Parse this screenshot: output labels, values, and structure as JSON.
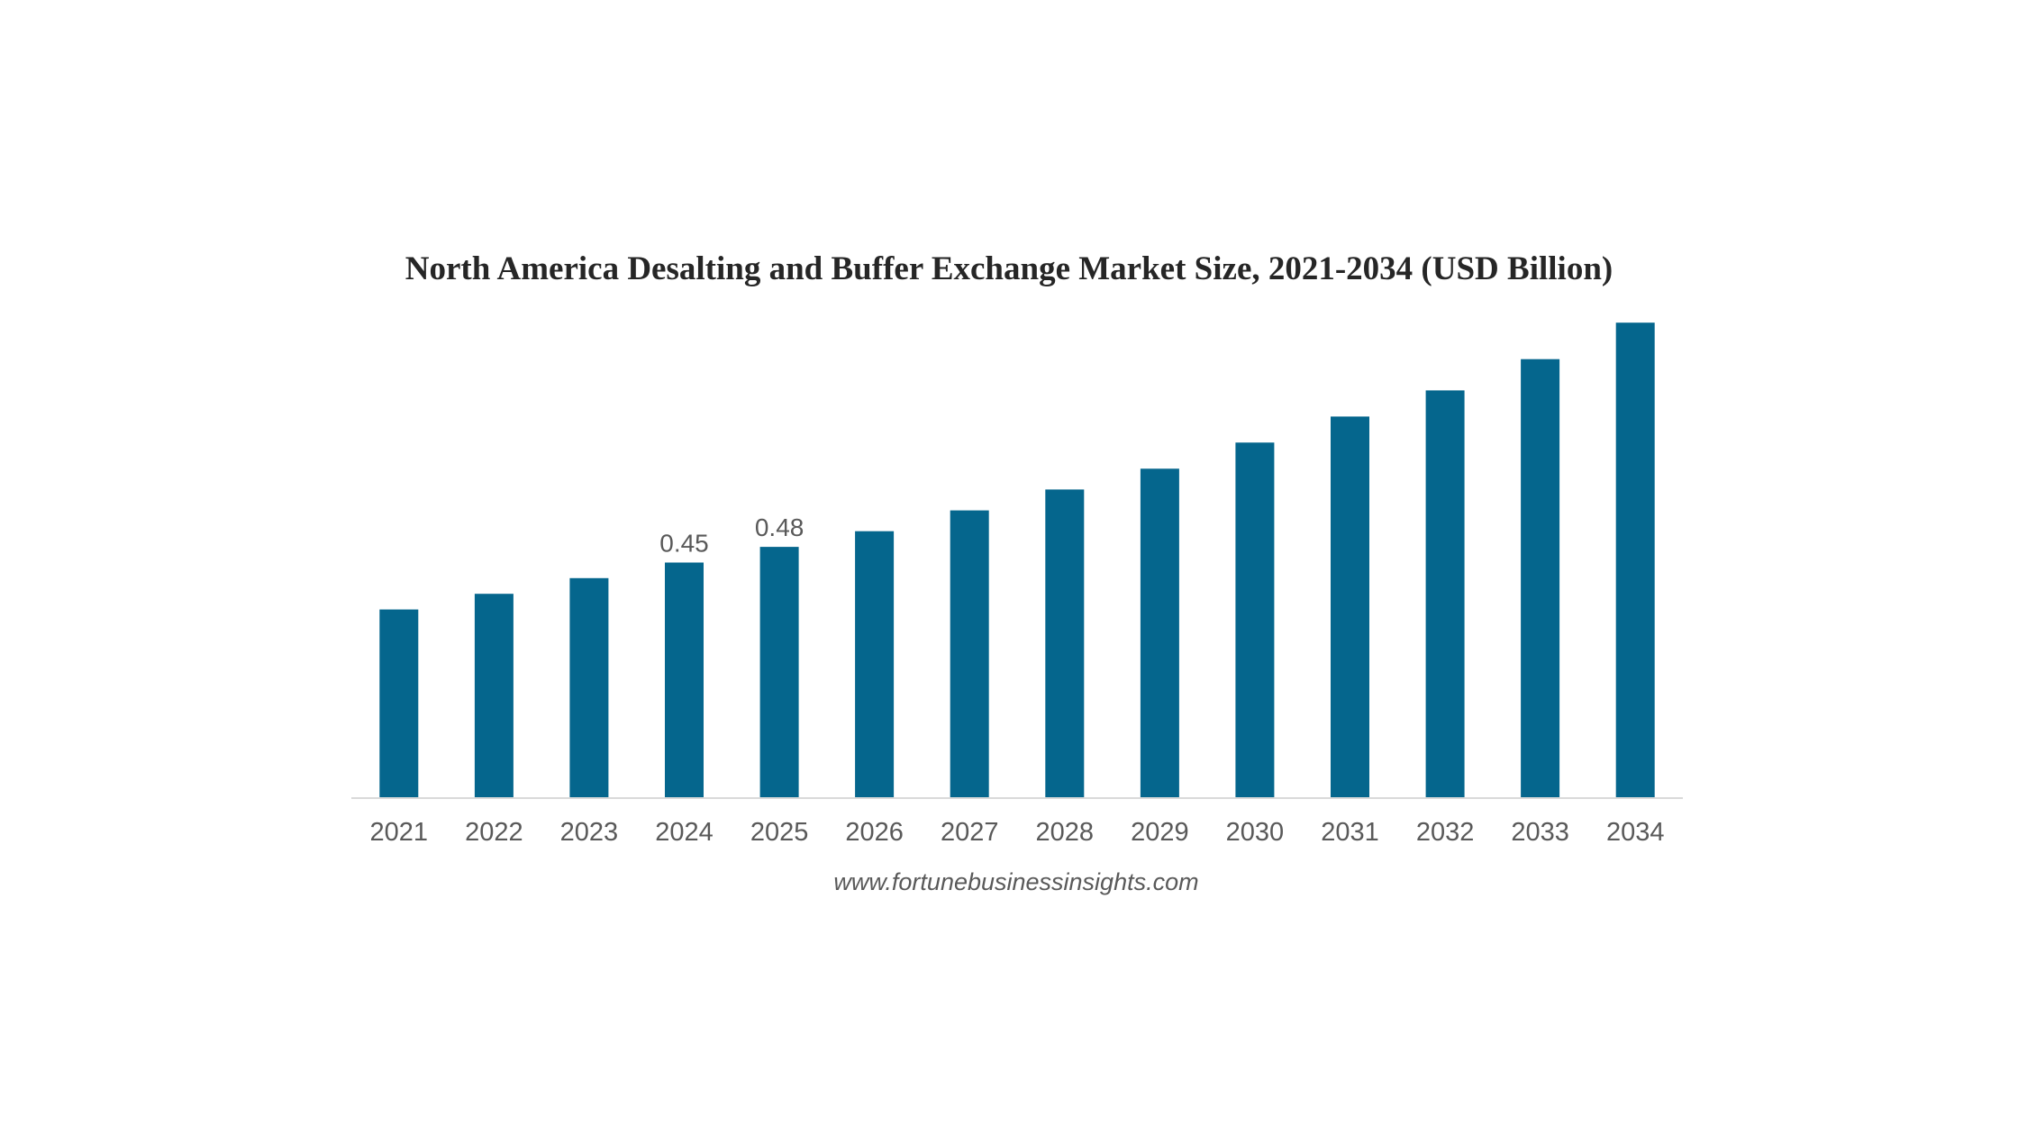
{
  "chart_data": {
    "type": "bar",
    "title": "North America Desalting and Buffer Exchange Market Size, 2021-2034 (USD Billion)",
    "xlabel": "",
    "ylabel": "",
    "categories": [
      "2021",
      "2022",
      "2023",
      "2024",
      "2025",
      "2026",
      "2027",
      "2028",
      "2029",
      "2030",
      "2031",
      "2032",
      "2033",
      "2034"
    ],
    "values": [
      0.36,
      0.39,
      0.42,
      0.45,
      0.48,
      0.51,
      0.55,
      0.59,
      0.63,
      0.68,
      0.73,
      0.78,
      0.84,
      0.91
    ],
    "data_labels": [
      "",
      "",
      "",
      "0.45",
      "0.48",
      "",
      "",
      "",
      "",
      "",
      "",
      "",
      "",
      ""
    ],
    "ylim": [
      0,
      0.95
    ],
    "grid": false,
    "legend": "none",
    "bar_color": "#05668d",
    "source": "www.fortunebusinessinsights.com"
  }
}
